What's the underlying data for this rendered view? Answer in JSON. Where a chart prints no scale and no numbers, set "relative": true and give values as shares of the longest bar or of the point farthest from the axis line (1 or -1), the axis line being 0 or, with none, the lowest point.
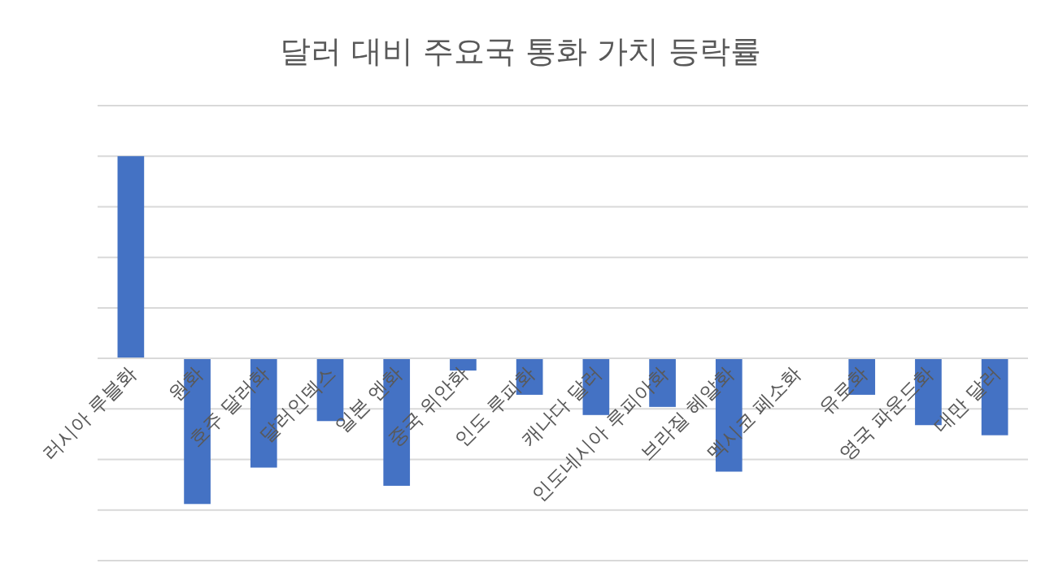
{
  "chart_data": {
    "type": "bar",
    "title": "달러 대비 주요국 통화 가치 등락률",
    "categories": [
      "러시아 루블화",
      "원화",
      "호주 달러화",
      "달러인덱스",
      "일본 엔화",
      "중국 위안화",
      "인도 루피화",
      "캐나다 달러",
      "인도네시아 루피아화",
      "브라질 헤알화",
      "멕시코 페소화",
      "유로화",
      "영국 파운드화",
      "대만 달러"
    ],
    "values": [
      1,
      -0.72,
      -0.54,
      -0.31,
      -0.63,
      -0.06,
      -0.18,
      -0.28,
      -0.24,
      -0.56,
      0,
      -0.18,
      -0.33,
      -0.38
    ],
    "color": "#4472c4",
    "relative": true,
    "grid": "y"
  }
}
